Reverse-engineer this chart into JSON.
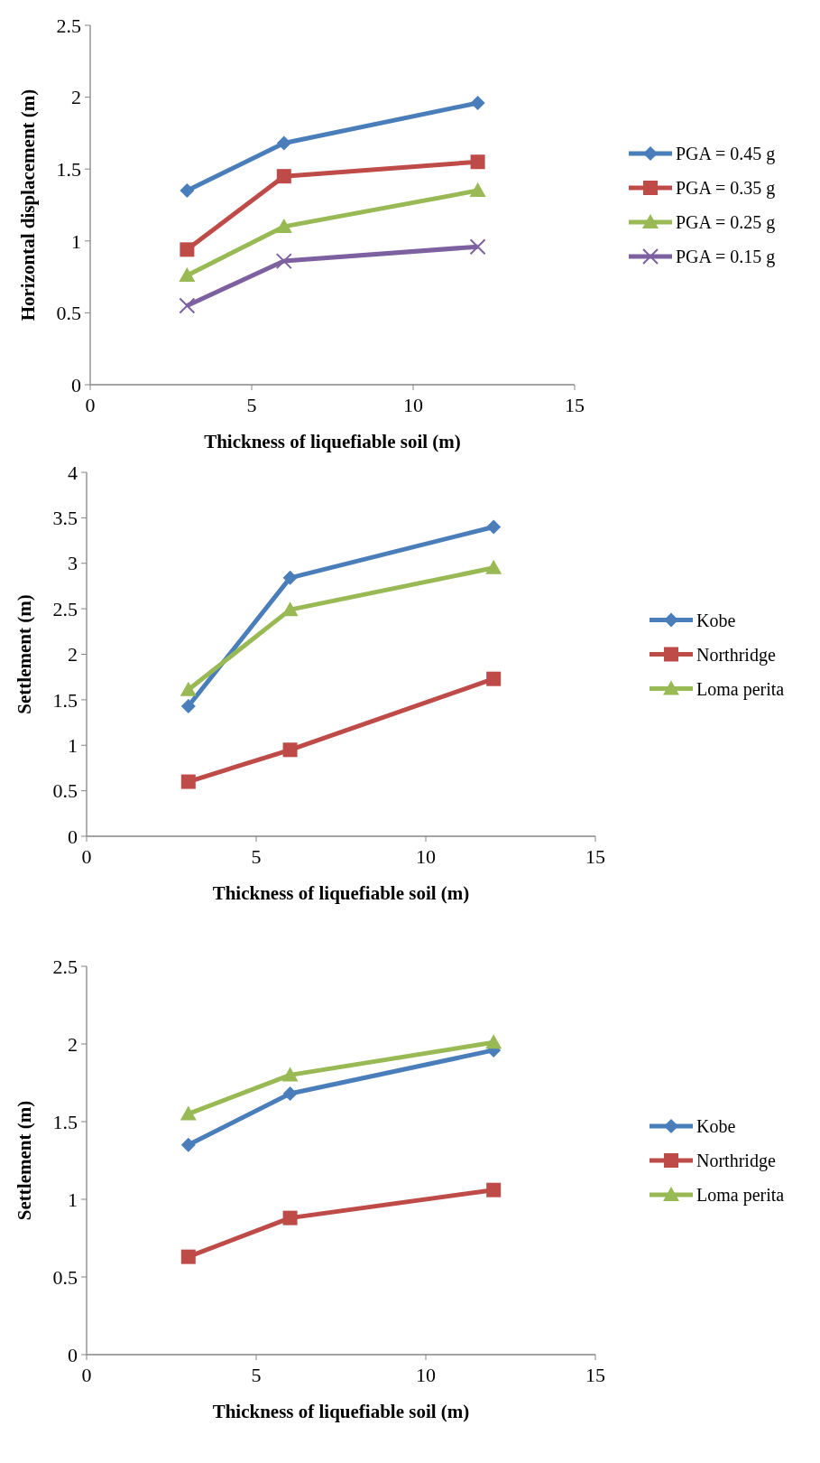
{
  "chart_data": [
    {
      "type": "line",
      "xlabel": "Thickness of liquefiable soil (m)",
      "ylabel": "Horizontal displacement (m)",
      "x": [
        3,
        6,
        12
      ],
      "xlim": [
        0,
        15
      ],
      "xticks": [
        0,
        5,
        10,
        15
      ],
      "ylim": [
        0,
        2.5
      ],
      "yticks": [
        0,
        0.5,
        1,
        1.5,
        2,
        2.5
      ],
      "legend": "right",
      "grid": false,
      "series": [
        {
          "name": "PGA = 0.45 g",
          "color": "#4a7ebb",
          "marker": "diamond",
          "values": [
            1.35,
            1.68,
            1.96
          ]
        },
        {
          "name": "PGA = 0.35 g",
          "color": "#be4b48",
          "marker": "square",
          "values": [
            0.94,
            1.45,
            1.55
          ]
        },
        {
          "name": "PGA = 0.25 g",
          "color": "#98b954",
          "marker": "triangle",
          "values": [
            0.76,
            1.1,
            1.35
          ]
        },
        {
          "name": "PGA = 0.15 g",
          "color": "#7d60a0",
          "marker": "cross",
          "values": [
            0.55,
            0.86,
            0.96
          ]
        }
      ]
    },
    {
      "type": "line",
      "xlabel": "Thickness of liquefiable soil (m)",
      "ylabel": "Settlement (m)",
      "x": [
        3,
        6,
        12
      ],
      "xlim": [
        0,
        15
      ],
      "xticks": [
        0,
        5,
        10,
        15
      ],
      "ylim": [
        0,
        4
      ],
      "yticks": [
        0,
        0.5,
        1,
        1.5,
        2,
        2.5,
        3,
        3.5,
        4
      ],
      "legend": "right",
      "grid": false,
      "series": [
        {
          "name": "Kobe",
          "color": "#4a7ebb",
          "marker": "diamond",
          "values": [
            1.43,
            2.84,
            3.4
          ]
        },
        {
          "name": "Northridge",
          "color": "#be4b48",
          "marker": "square",
          "values": [
            0.6,
            0.95,
            1.73
          ]
        },
        {
          "name": "Loma perita",
          "color": "#98b954",
          "marker": "triangle",
          "values": [
            1.61,
            2.49,
            2.95
          ]
        }
      ]
    },
    {
      "type": "line",
      "xlabel": "Thickness of liquefiable soil (m)",
      "ylabel": "Settlement (m)",
      "x": [
        3,
        6,
        12
      ],
      "xlim": [
        0,
        15
      ],
      "xticks": [
        0,
        5,
        10,
        15
      ],
      "ylim": [
        0,
        2.5
      ],
      "yticks": [
        0,
        0.5,
        1,
        1.5,
        2,
        2.5
      ],
      "legend": "right",
      "grid": false,
      "series": [
        {
          "name": "Kobe",
          "color": "#4a7ebb",
          "marker": "diamond",
          "values": [
            1.35,
            1.68,
            1.96
          ]
        },
        {
          "name": "Northridge",
          "color": "#be4b48",
          "marker": "square",
          "values": [
            0.63,
            0.88,
            1.06
          ]
        },
        {
          "name": "Loma perita",
          "color": "#98b954",
          "marker": "triangle",
          "values": [
            1.55,
            1.8,
            2.01
          ]
        }
      ]
    }
  ]
}
